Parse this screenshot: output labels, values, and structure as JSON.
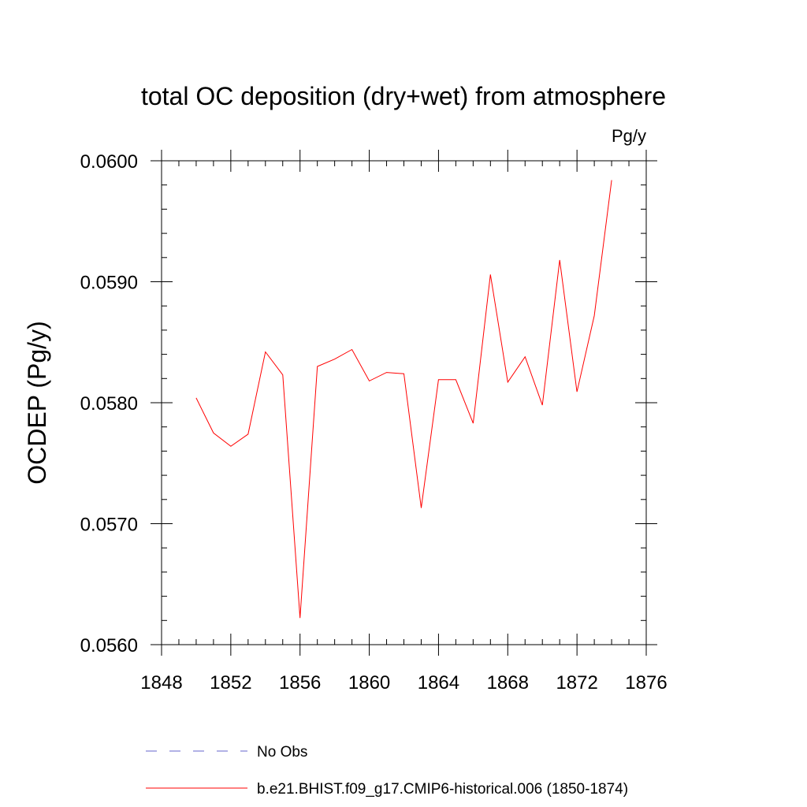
{
  "chart_data": {
    "type": "line",
    "title": "total OC deposition (dry+wet) from atmosphere",
    "units_label": "Pg/y",
    "ylabel": "OCDEP  (Pg/y)",
    "xlabel": "",
    "xlim": [
      1848,
      1876
    ],
    "ylim": [
      0.056,
      0.06
    ],
    "x_ticks": [
      1848,
      1852,
      1856,
      1860,
      1864,
      1868,
      1872,
      1876
    ],
    "x_tick_labels": [
      "1848",
      "1852",
      "1856",
      "1860",
      "1864",
      "1868",
      "1872",
      "1876"
    ],
    "y_ticks": [
      0.056,
      0.057,
      0.058,
      0.059,
      0.06
    ],
    "y_tick_labels": [
      "0.0560",
      "0.0570",
      "0.0580",
      "0.0590",
      "0.0600"
    ],
    "grid": false,
    "legend_position": "bottom",
    "x": [
      1850,
      1851,
      1852,
      1853,
      1854,
      1855,
      1856,
      1857,
      1858,
      1859,
      1860,
      1861,
      1862,
      1863,
      1864,
      1865,
      1866,
      1867,
      1868,
      1869,
      1870,
      1871,
      1872,
      1873,
      1874
    ],
    "series": [
      {
        "name": "b.e21.BHIST.f09_g17.CMIP6-historical.006 (1850-1874)",
        "color": "#ff0000",
        "dash": "solid",
        "values": [
          0.05804,
          0.05775,
          0.05764,
          0.05774,
          0.05842,
          0.05823,
          0.05622,
          0.0583,
          0.05836,
          0.05844,
          0.05818,
          0.05825,
          0.05824,
          0.05713,
          0.05819,
          0.05819,
          0.05783,
          0.05906,
          0.05817,
          0.05838,
          0.05798,
          0.05918,
          0.05809,
          0.05872,
          0.05984
        ]
      }
    ],
    "legend": [
      {
        "label": "No Obs",
        "color": "#6666cc",
        "dash": "dashed"
      },
      {
        "label": "b.e21.BHIST.f09_g17.CMIP6-historical.006 (1850-1874)",
        "color": "#ff0000",
        "dash": "solid"
      }
    ]
  }
}
